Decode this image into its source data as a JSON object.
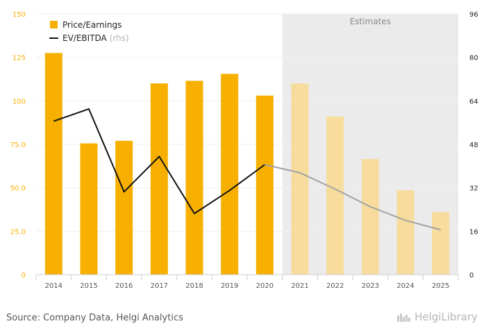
{
  "chart_data": {
    "type": "bar",
    "categories": [
      "2014",
      "2015",
      "2016",
      "2017",
      "2018",
      "2019",
      "2020",
      "2021",
      "2022",
      "2023",
      "2024",
      "2025"
    ],
    "estimate_start_index": 7,
    "estimates_label": "Estimates",
    "series": [
      {
        "name": "Price/Earnings",
        "axis": "left",
        "type": "bar",
        "values": [
          127.5,
          75.5,
          77,
          110,
          111.5,
          115.5,
          103,
          110,
          91,
          66.5,
          48.5,
          36
        ]
      },
      {
        "name": "EV/EBITDA",
        "axis_label": "(rhs)",
        "axis": "right",
        "type": "line",
        "values": [
          56.5,
          61,
          30.5,
          43.5,
          22.5,
          31,
          40.5,
          37.5,
          31.5,
          25,
          20,
          16.5
        ]
      }
    ],
    "y_left": {
      "min": 0,
      "max": 150,
      "ticks": [
        0,
        25.0,
        50.0,
        75.0,
        100,
        125,
        150
      ],
      "tick_labels": [
        "0",
        "25.0",
        "50.0",
        "75.0",
        "100",
        "125",
        "150"
      ]
    },
    "y_right": {
      "min": 0,
      "max": 96,
      "ticks": [
        0,
        16,
        32,
        48,
        64,
        80,
        96
      ],
      "tick_labels": [
        "0",
        "16",
        "32",
        "48",
        "64",
        "80",
        "96"
      ]
    },
    "colors": {
      "bar": "#f7b000",
      "bar_estimate": "#f7dc9e",
      "line": "#111111",
      "line_estimate": "#a3a3a3",
      "estimate_bg": "#ebebeb",
      "axis_text_left": "#f7b000",
      "axis_text_right": "#222222",
      "x_text": "#555555"
    },
    "legend_position": "top-left"
  },
  "footer": {
    "source": "Source: Company Data, Helgi Analytics",
    "logo_text": "HelgiLibrary"
  }
}
